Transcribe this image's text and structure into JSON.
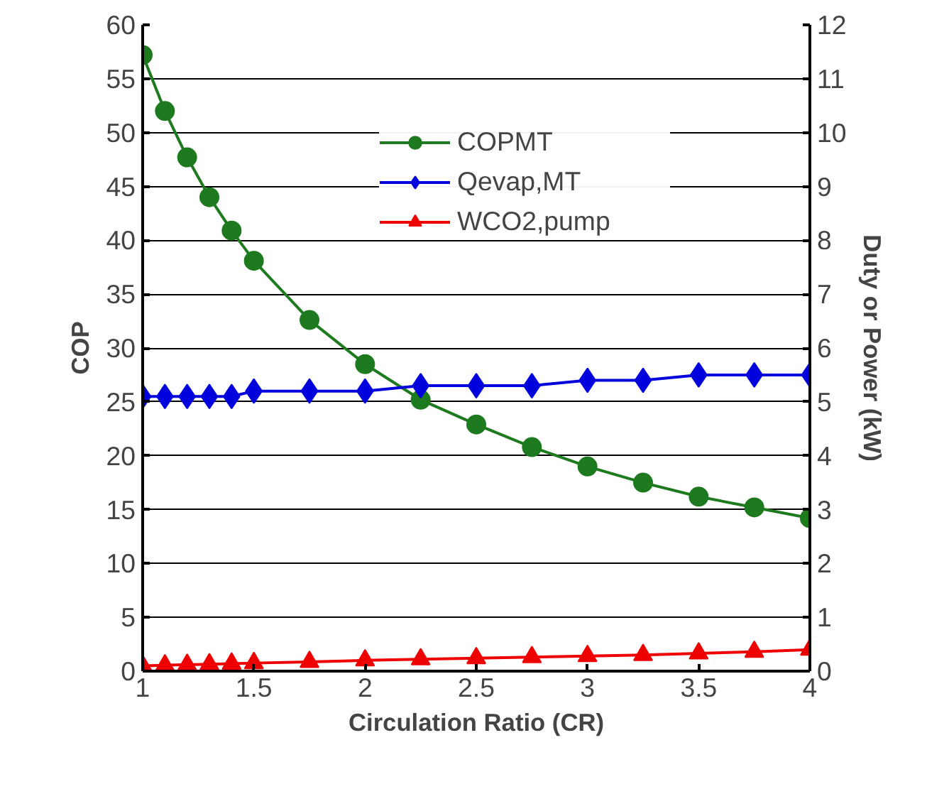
{
  "chart_data": {
    "type": "line",
    "xlabel": "Circulation Ratio (CR)",
    "ylabel": "COP",
    "y2label": "Duty or Power (kW)",
    "x": [
      1,
      1.1,
      1.2,
      1.3,
      1.4,
      1.5,
      1.75,
      2,
      2.25,
      2.5,
      2.75,
      3,
      3.25,
      3.5,
      3.75,
      4
    ],
    "series": [
      {
        "name": "COPMT",
        "color": "#1e7a1e",
        "marker": "circle",
        "values": [
          57.2,
          52,
          47.7,
          44,
          40.9,
          38.1,
          32.6,
          28.5,
          25.2,
          22.9,
          20.8,
          19,
          17.5,
          16.2,
          15.2,
          14.2
        ]
      },
      {
        "name": "Qevap,MT",
        "color": "#0000dd",
        "marker": "diamond",
        "axis": "y2",
        "values": [
          5.1,
          5.1,
          5.1,
          5.1,
          5.1,
          5.2,
          5.2,
          5.2,
          5.3,
          5.3,
          5.3,
          5.4,
          5.4,
          5.5,
          5.5,
          5.5
        ]
      },
      {
        "name": "WCO2,pump",
        "color": "#ee0000",
        "marker": "triangle",
        "axis": "y2",
        "values": [
          0.1,
          0.11,
          0.12,
          0.13,
          0.14,
          0.15,
          0.17,
          0.2,
          0.22,
          0.24,
          0.26,
          0.28,
          0.3,
          0.33,
          0.36,
          0.4
        ]
      }
    ],
    "xlim": [
      1,
      4
    ],
    "xticks": [
      1,
      1.5,
      2,
      2.5,
      3,
      3.5,
      4
    ],
    "ylim": [
      0,
      60
    ],
    "yticks": [
      0,
      5,
      10,
      15,
      20,
      25,
      30,
      35,
      40,
      45,
      50,
      55,
      60
    ],
    "y2lim": [
      0,
      12
    ],
    "y2ticks": [
      0,
      1,
      2,
      3,
      4,
      5,
      6,
      7,
      8,
      9,
      10,
      11,
      12
    ],
    "grid": "y",
    "legend": "top",
    "line_style": "solid"
  }
}
